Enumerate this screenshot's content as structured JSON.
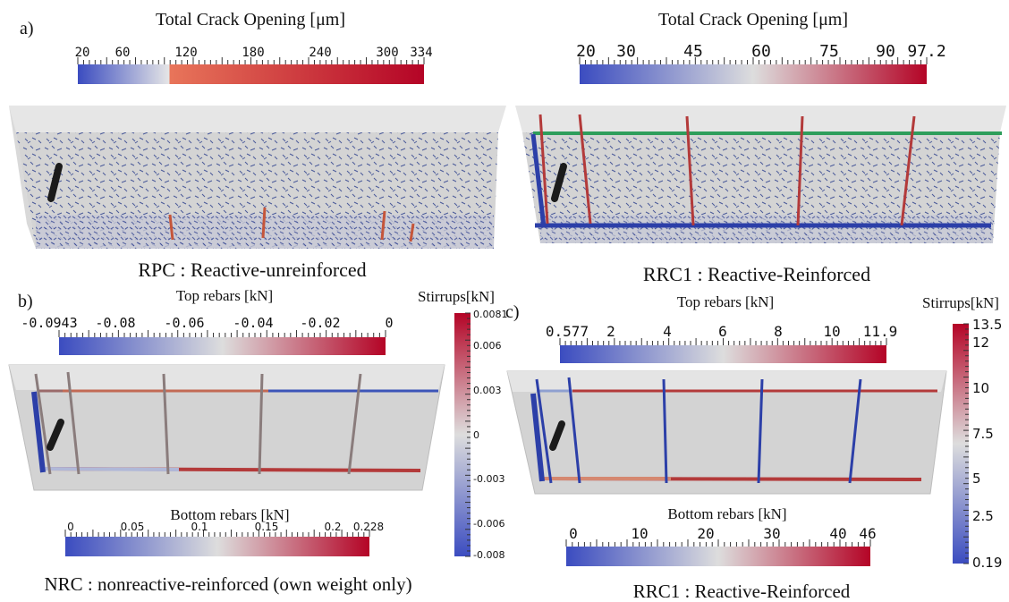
{
  "panels": {
    "a": {
      "label": "a)",
      "left": {
        "legend_title": "Total Crack Opening [μm]",
        "ticks": [
          "20",
          "60",
          "120",
          "180",
          "240",
          "300",
          "334"
        ],
        "caption": "RPC : Reactive-unreinforced"
      },
      "right": {
        "legend_title": "Total Crack Opening [μm]",
        "ticks": [
          "20",
          "30",
          "45",
          "60",
          "75",
          "90",
          "97.2"
        ],
        "caption": "RRC1 : Reactive-Reinforced"
      }
    },
    "b": {
      "label": "b)",
      "top_title": "Top rebars [kN]",
      "top_ticks": [
        "-0.0943",
        "-0.08",
        "-0.06",
        "-0.04",
        "-0.02",
        "0"
      ],
      "stirrups_title": "Stirrups[kN]",
      "stirrups_ticks": [
        "0.0081",
        "0.006",
        "0.003",
        "0",
        "-0.003",
        "-0.006",
        "-0.008"
      ],
      "bottom_title": "Bottom rebars [kN]",
      "bottom_ticks": [
        "0",
        "0.05",
        "0.1",
        "0.15",
        "0.2",
        "0.228"
      ],
      "caption": "NRC : nonreactive-reinforced (own weight only)"
    },
    "c": {
      "label": "c)",
      "top_title": "Top rebars [kN]",
      "top_ticks": [
        "0.577",
        "2",
        "4",
        "6",
        "8",
        "10",
        "11.9"
      ],
      "stirrups_title": "Stirrups[kN]",
      "stirrups_ticks": [
        "13.5",
        "12",
        "10",
        "7.5",
        "5",
        "2.5",
        "0.19"
      ],
      "bottom_title": "Bottom rebars [kN]",
      "bottom_ticks": [
        "0",
        "10",
        "20",
        "30",
        "40",
        "46"
      ],
      "caption": "RRC1 : Reactive-Reinforced"
    }
  },
  "colors": {
    "cool": "#3b4cc0",
    "neutral": "#dddddd",
    "warm": "#b40426",
    "concrete": "#cfcfcf",
    "top_rebar": "#2e9e5b",
    "bottom_rebar": "#2c3fa8",
    "stirrup": "#b33a3a"
  }
}
